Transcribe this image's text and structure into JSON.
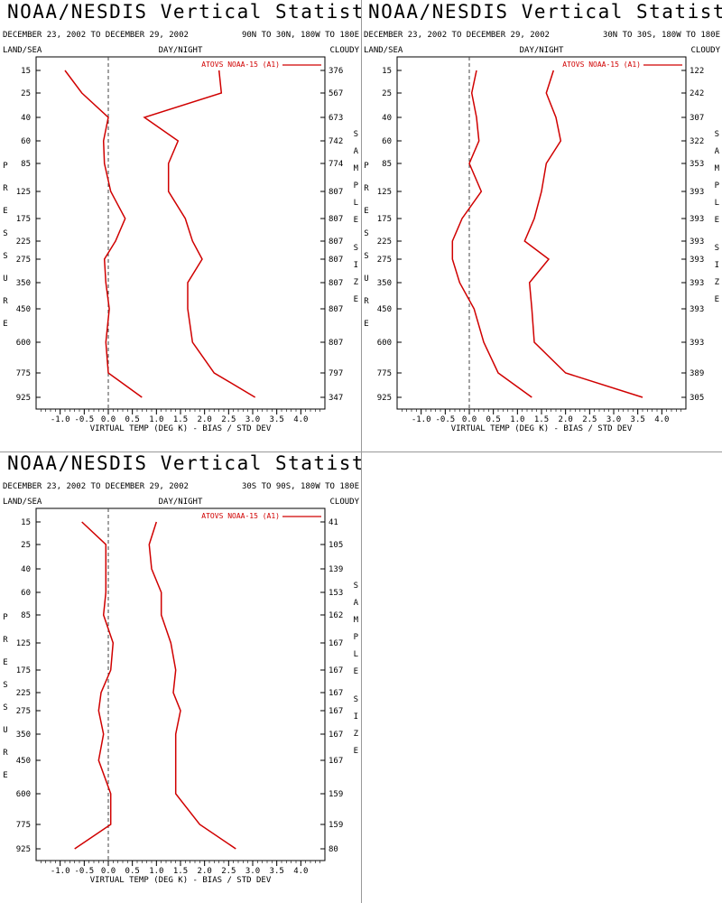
{
  "panels": [
    {
      "title": "NOAA/NESDIS Vertical Statistics",
      "date_range": "DECEMBER 23, 2002 TO DECEMBER 29, 2002",
      "region": "90N TO 30N, 180W TO 180E",
      "land_sea": "LAND/SEA",
      "day_night": "DAY/NIGHT",
      "cloudy": "CLOUDY",
      "legend": "ATOVS NOAA-15 (A1)",
      "left_label": "PRESSURE",
      "right_label_1": "SAMPLE",
      "right_label_2": "SIZE",
      "chart_data": {
        "type": "line",
        "xlabel": "VIRTUAL TEMP (DEG K) - BIAS / STD DEV",
        "xlim": [
          -1.5,
          4.5
        ],
        "xticks": [
          "-1.0",
          "-0.5",
          "0.0",
          "0.5",
          "1.0",
          "1.5",
          "2.0",
          "2.5",
          "3.0",
          "3.5",
          "4.0"
        ],
        "pressure_levels": [
          "15",
          "25",
          "40",
          "60",
          "85",
          "125",
          "175",
          "225",
          "275",
          "350",
          "450",
          "600",
          "775",
          "925"
        ],
        "sample_size": [
          "376",
          "567",
          "673",
          "742",
          "774",
          "807",
          "807",
          "807",
          "807",
          "807",
          "807",
          "807",
          "797",
          "347"
        ],
        "series": [
          {
            "name": "BIAS",
            "values": [
              -0.9,
              -0.55,
              0.0,
              -0.1,
              -0.08,
              0.05,
              0.35,
              0.15,
              -0.08,
              -0.05,
              0.02,
              -0.05,
              0.0,
              0.7
            ]
          },
          {
            "name": "STD DEV",
            "values": [
              2.3,
              2.35,
              0.75,
              1.45,
              1.25,
              1.25,
              1.6,
              1.75,
              1.95,
              1.65,
              1.65,
              1.75,
              2.2,
              3.05
            ]
          }
        ]
      }
    },
    {
      "title": "NOAA/NESDIS Vertical Statistics",
      "date_range": "DECEMBER 23, 2002 TO DECEMBER 29, 2002",
      "region": "30N TO 30S, 180W TO 180E",
      "land_sea": "LAND/SEA",
      "day_night": "DAY/NIGHT",
      "cloudy": "CLOUDY",
      "legend": "ATOVS NOAA-15 (A1)",
      "left_label": "PRESSURE",
      "right_label_1": "SAMPLE",
      "right_label_2": "SIZE",
      "chart_data": {
        "type": "line",
        "xlabel": "VIRTUAL TEMP (DEG K) - BIAS / STD DEV",
        "xlim": [
          -1.5,
          4.5
        ],
        "xticks": [
          "-1.0",
          "-0.5",
          "0.0",
          "0.5",
          "1.0",
          "1.5",
          "2.0",
          "2.5",
          "3.0",
          "3.5",
          "4.0"
        ],
        "pressure_levels": [
          "15",
          "25",
          "40",
          "60",
          "85",
          "125",
          "175",
          "225",
          "275",
          "350",
          "450",
          "600",
          "775",
          "925"
        ],
        "sample_size": [
          "122",
          "242",
          "307",
          "322",
          "353",
          "393",
          "393",
          "393",
          "393",
          "393",
          "393",
          "393",
          "389",
          "305"
        ],
        "series": [
          {
            "name": "BIAS",
            "values": [
              0.15,
              0.05,
              0.15,
              0.2,
              0.0,
              0.25,
              -0.15,
              -0.35,
              -0.35,
              -0.2,
              0.1,
              0.3,
              0.6,
              1.3
            ]
          },
          {
            "name": "STD DEV",
            "values": [
              1.75,
              1.6,
              1.8,
              1.9,
              1.6,
              1.5,
              1.35,
              1.15,
              1.65,
              1.25,
              1.3,
              1.35,
              2.0,
              3.6
            ]
          }
        ]
      }
    },
    {
      "title": "NOAA/NESDIS Vertical Statistics",
      "date_range": "DECEMBER 23, 2002 TO DECEMBER 29, 2002",
      "region": "30S TO 90S, 180W TO 180E",
      "land_sea": "LAND/SEA",
      "day_night": "DAY/NIGHT",
      "cloudy": "CLOUDY",
      "legend": "ATOVS NOAA-15 (A1)",
      "left_label": "PRESSURE",
      "right_label_1": "SAMPLE",
      "right_label_2": "SIZE",
      "chart_data": {
        "type": "line",
        "xlabel": "VIRTUAL TEMP (DEG K) - BIAS / STD DEV",
        "xlim": [
          -1.5,
          4.5
        ],
        "xticks": [
          "-1.0",
          "-0.5",
          "0.0",
          "0.5",
          "1.0",
          "1.5",
          "2.0",
          "2.5",
          "3.0",
          "3.5",
          "4.0"
        ],
        "pressure_levels": [
          "15",
          "25",
          "40",
          "60",
          "85",
          "125",
          "175",
          "225",
          "275",
          "350",
          "450",
          "600",
          "775",
          "925"
        ],
        "sample_size": [
          "41",
          "105",
          "139",
          "153",
          "162",
          "167",
          "167",
          "167",
          "167",
          "167",
          "167",
          "159",
          "159",
          "80"
        ],
        "series": [
          {
            "name": "BIAS",
            "values": [
              -0.55,
              -0.05,
              -0.05,
              -0.05,
              -0.1,
              0.1,
              0.05,
              -0.15,
              -0.2,
              -0.1,
              -0.2,
              0.05,
              0.05,
              -0.7
            ]
          },
          {
            "name": "STD DEV",
            "values": [
              1.0,
              0.85,
              0.9,
              1.1,
              1.1,
              1.3,
              1.4,
              1.35,
              1.5,
              1.4,
              1.4,
              1.4,
              1.9,
              2.65
            ]
          }
        ]
      }
    }
  ]
}
